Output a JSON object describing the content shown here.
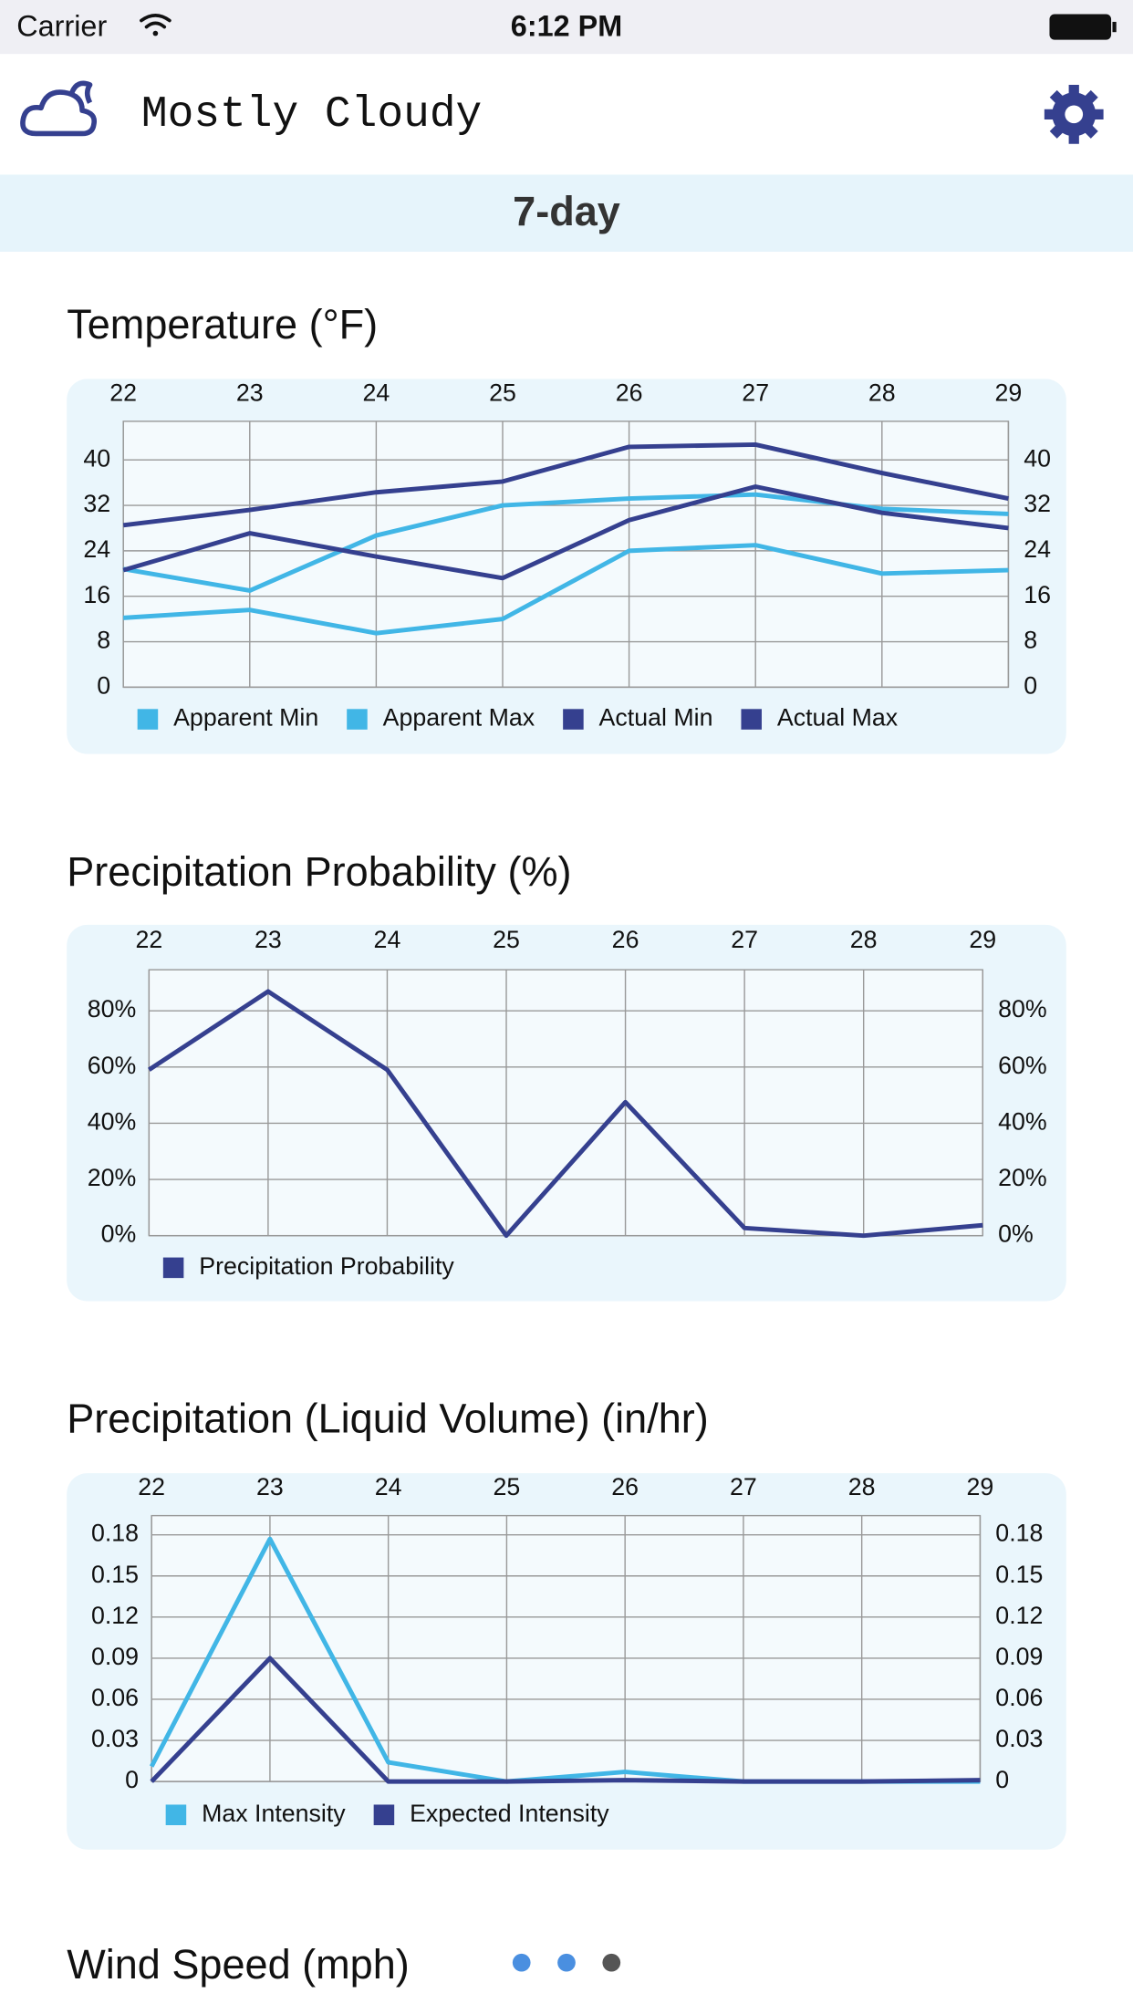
{
  "status_bar": {
    "carrier": "Carrier",
    "time": "6:12 PM"
  },
  "header": {
    "title": "Mostly Cloudy"
  },
  "tab": {
    "label": "7-day"
  },
  "charts": [
    {
      "type": "line",
      "title": "Temperature (°F)",
      "categories": [
        "22",
        "23",
        "24",
        "25",
        "26",
        "27",
        "28",
        "29"
      ],
      "series": [
        {
          "name": "Apparent Min",
          "color": "#41b6e6",
          "values": [
            12.2,
            13.6,
            9.5,
            12,
            24,
            25,
            20,
            20.6
          ]
        },
        {
          "name": "Apparent Max",
          "color": "#41b6e6",
          "values": [
            20.8,
            17,
            26.7,
            32,
            33.2,
            33.9,
            31.4,
            30.5
          ]
        },
        {
          "name": "Actual Min",
          "color": "#35408f",
          "values": [
            20.6,
            27.1,
            23,
            19.2,
            29.4,
            35.3,
            30.7,
            28
          ]
        },
        {
          "name": "Actual Max",
          "color": "#35408f",
          "values": [
            28.5,
            31.2,
            34.3,
            36.2,
            42.3,
            42.7,
            37.7,
            33.2
          ]
        }
      ],
      "ylim": [
        0,
        46.8
      ],
      "yticks": [
        0,
        8,
        16,
        24,
        32,
        40
      ],
      "grid": true
    },
    {
      "type": "line",
      "title": "Precipitation Probability (%)",
      "categories": [
        "22",
        "23",
        "24",
        "25",
        "26",
        "27",
        "28",
        "29"
      ],
      "series": [
        {
          "name": "Precipitation Probability",
          "color": "#35408f",
          "values": [
            59,
            86.9,
            59,
            0,
            47.5,
            2.7,
            0,
            3.7
          ]
        }
      ],
      "ylim": [
        0,
        94.6
      ],
      "yticks": [
        {
          "value": 0,
          "label": "0%"
        },
        {
          "value": 20,
          "label": "20%"
        },
        {
          "value": 40,
          "label": "40%"
        },
        {
          "value": 60,
          "label": "60%"
        },
        {
          "value": 80,
          "label": "80%"
        }
      ],
      "grid": true
    },
    {
      "type": "line",
      "title": "Precipitation (Liquid Volume) (in/hr)",
      "categories": [
        "22",
        "23",
        "24",
        "25",
        "26",
        "27",
        "28",
        "29"
      ],
      "series": [
        {
          "name": "Max Intensity",
          "color": "#41b6e6",
          "values": [
            0.011,
            0.177,
            0.014,
            0,
            0.007,
            0,
            0,
            0
          ]
        },
        {
          "name": "Expected Intensity",
          "color": "#35408f",
          "values": [
            0,
            0.09,
            0,
            0,
            0.001,
            0,
            0,
            0.001
          ]
        }
      ],
      "ylim": [
        0,
        0.194
      ],
      "yticks": [
        0,
        0.03,
        0.06,
        0.09,
        0.12,
        0.15,
        0.18
      ],
      "grid": true
    }
  ],
  "next_section": {
    "title": "Wind Speed (mph)"
  }
}
